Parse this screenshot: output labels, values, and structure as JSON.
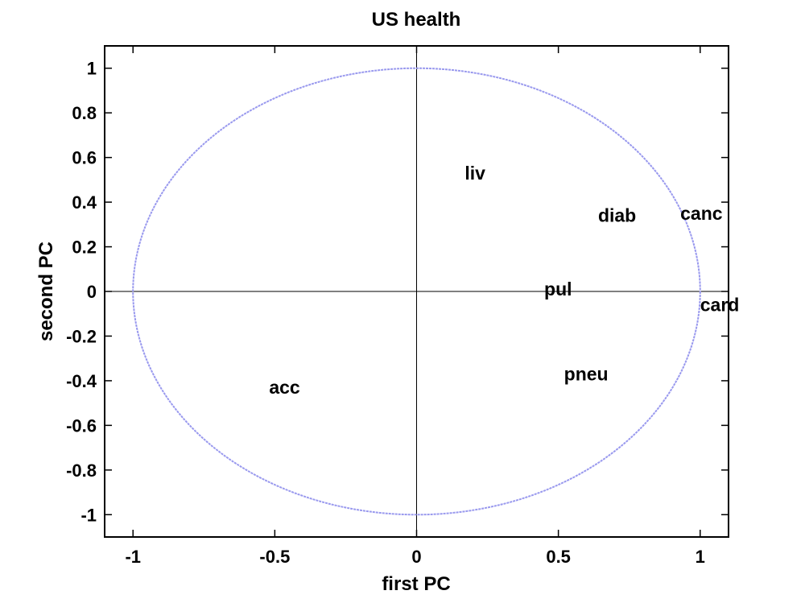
{
  "chart_data": {
    "type": "scatter",
    "title": "US health",
    "xlabel": "first PC",
    "ylabel": "second PC",
    "xlim": [
      -1.1,
      1.1
    ],
    "ylim": [
      -1.1,
      1.1
    ],
    "xticks": [
      -1,
      -0.5,
      0,
      0.5,
      1
    ],
    "yticks": [
      -1,
      -0.8,
      -0.6,
      -0.4,
      -0.2,
      0,
      0.2,
      0.4,
      0.6,
      0.8,
      1
    ],
    "xtick_labels": [
      "-1",
      "-0.5",
      "0",
      "0.5",
      "1"
    ],
    "ytick_labels": [
      "-1",
      "-0.8",
      "-0.6",
      "-0.4",
      "-0.2",
      "0",
      "0.2",
      "0.4",
      "0.6",
      "0.8",
      "1"
    ],
    "unit_circle": {
      "radius": 1,
      "color": "#9999ee"
    },
    "grid": false,
    "points": [
      {
        "label": "liv",
        "x": 0.17,
        "y": 0.53
      },
      {
        "label": "diab",
        "x": 0.64,
        "y": 0.34
      },
      {
        "label": "canc",
        "x": 0.93,
        "y": 0.35
      },
      {
        "label": "pul",
        "x": 0.45,
        "y": 0.01
      },
      {
        "label": "card",
        "x": 1.0,
        "y": -0.06
      },
      {
        "label": "pneu",
        "x": 0.52,
        "y": -0.37
      },
      {
        "label": "acc",
        "x": -0.52,
        "y": -0.43
      }
    ]
  }
}
